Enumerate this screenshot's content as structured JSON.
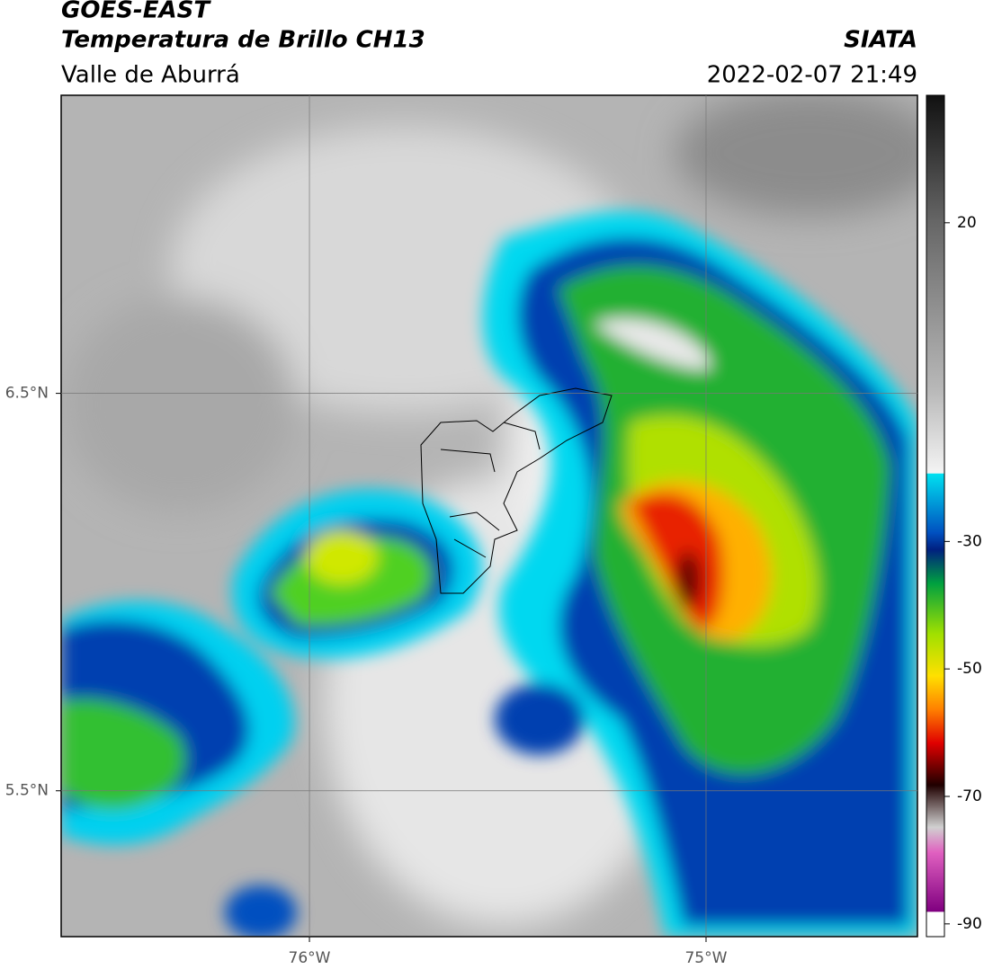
{
  "header": {
    "title": "GOES-EAST",
    "subtitle": "Temperatura de Brillo CH13",
    "region": "Valle de Aburrá",
    "source": "SIATA",
    "datetime": "2022-02-07 21:49"
  },
  "map": {
    "xlim": [
      -76.626,
      -74.467
    ],
    "ylim": [
      5.133,
      7.25
    ],
    "xticks": [
      {
        "value": -76,
        "label": "76°W"
      },
      {
        "value": -75,
        "label": "75°W"
      }
    ],
    "yticks": [
      {
        "value": 6.5,
        "label": "6.5°N"
      },
      {
        "value": 5.5,
        "label": "5.5°N"
      }
    ],
    "grid": true
  },
  "colorbar": {
    "clim": [
      -92,
      40
    ],
    "ticks": [
      20,
      -30,
      -50,
      -70,
      -90
    ]
  }
}
